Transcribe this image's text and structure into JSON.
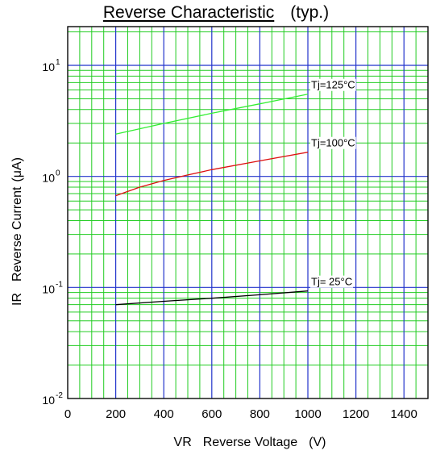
{
  "chart_data": {
    "type": "line",
    "title": "Reverse Characteristic",
    "subtitle": "(typ.)",
    "xlabel": {
      "symbol": "VR",
      "text": "Reverse Voltage",
      "unit": "(V)"
    },
    "ylabel": {
      "symbol": "IR",
      "text": "Reverse Current",
      "unit": "(μA)"
    },
    "x_scale": "linear",
    "y_scale": "log",
    "xlim": [
      0,
      1500
    ],
    "ylim": [
      0.01,
      20
    ],
    "x_ticks": [
      0,
      200,
      400,
      600,
      800,
      1000,
      1200,
      1400
    ],
    "y_ticks": [
      {
        "value": 0.01,
        "base": "10",
        "exp": "-2"
      },
      {
        "value": 0.1,
        "base": "10",
        "exp": "-1"
      },
      {
        "value": 1,
        "base": "10",
        "exp": "0"
      },
      {
        "value": 10,
        "base": "10",
        "exp": "1"
      }
    ],
    "grid": true,
    "grid_colors": {
      "major": "#2233cc",
      "minor": "#22cc22"
    },
    "series": [
      {
        "name": "Tj=125°C",
        "color": "#33ee33",
        "x": [
          200,
          400,
          600,
          800,
          1000
        ],
        "y": [
          2.4,
          3.0,
          3.7,
          4.5,
          5.5
        ]
      },
      {
        "name": "Tj=100°C",
        "color": "#dd1111",
        "x": [
          200,
          300,
          400,
          500,
          600,
          800,
          1000
        ],
        "y": [
          0.67,
          0.8,
          0.92,
          1.03,
          1.15,
          1.38,
          1.65
        ]
      },
      {
        "name": "Tj= 25°C",
        "color": "#000000",
        "x": [
          200,
          400,
          600,
          800,
          1000
        ],
        "y": [
          0.07,
          0.075,
          0.08,
          0.086,
          0.093
        ]
      }
    ]
  }
}
